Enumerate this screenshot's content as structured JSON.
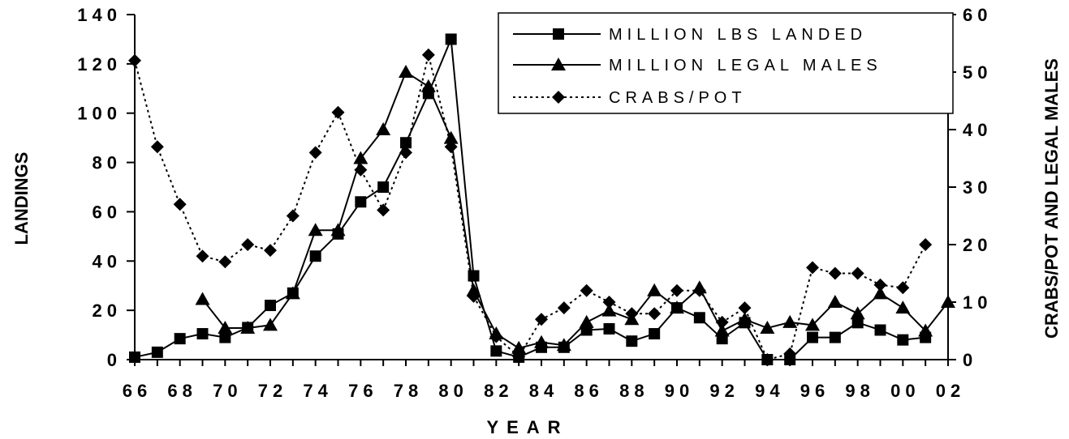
{
  "chart_data": {
    "type": "line",
    "xlabel": "YEAR",
    "ylabel_left": "LANDINGS",
    "ylabel_right": "CRABS/POT AND LEGAL MALES",
    "ylim_left": [
      0,
      140
    ],
    "ylim_right": [
      0,
      60
    ],
    "yticks_left": [
      "0",
      "20",
      "40",
      "60",
      "80",
      "100",
      "120",
      "140"
    ],
    "yticks_right": [
      "0",
      "10",
      "20",
      "30",
      "40",
      "50",
      "60"
    ],
    "xlim": [
      1966,
      2002
    ],
    "x_tick_labels": [
      "66",
      "68",
      "70",
      "72",
      "74",
      "76",
      "78",
      "80",
      "82",
      "84",
      "86",
      "88",
      "90",
      "92",
      "94",
      "96",
      "98",
      "00",
      "02"
    ],
    "grid": false,
    "legend_position": "top-right",
    "series": [
      {
        "name": "MILLION LBS LANDED",
        "axis": "left",
        "marker": "square",
        "line_style": "solid",
        "x": [
          1966,
          1967,
          1968,
          1969,
          1970,
          1971,
          1972,
          1973,
          1974,
          1975,
          1976,
          1977,
          1978,
          1979,
          1980,
          1981,
          1982,
          1983,
          1984,
          1985,
          1986,
          1987,
          1988,
          1989,
          1990,
          1991,
          1992,
          1993,
          1994,
          1995,
          1996,
          1997,
          1998,
          1999,
          2000,
          2001
        ],
        "values": [
          1,
          3,
          8.5,
          10.5,
          9,
          13,
          22,
          27,
          42,
          51,
          64,
          70,
          88,
          108,
          130,
          34,
          3.5,
          1,
          5,
          5,
          12,
          12.5,
          7.5,
          10.5,
          21,
          17,
          8.5,
          15,
          0,
          0,
          9,
          9,
          15,
          12,
          8,
          9
        ]
      },
      {
        "name": "MILLION LEGAL MALES",
        "axis": "right",
        "marker": "triangle",
        "line_style": "solid",
        "x": [
          1969,
          1970,
          1971,
          1972,
          1973,
          1974,
          1975,
          1976,
          1977,
          1978,
          1979,
          1980,
          1981,
          1982,
          1983,
          1984,
          1985,
          1986,
          1987,
          1988,
          1989,
          1990,
          1991,
          1992,
          1993,
          1994,
          1995,
          1996,
          1997,
          1998,
          1999,
          2000,
          2001,
          2002
        ],
        "values": [
          10.5,
          5.5,
          5.5,
          6,
          11.5,
          22.5,
          22.5,
          35,
          40,
          50,
          47.5,
          38.5,
          12,
          4.5,
          2,
          3,
          2.5,
          6.5,
          8.5,
          7,
          12,
          9,
          12.5,
          5,
          7,
          5.5,
          6.5,
          6,
          10,
          8,
          11.5,
          9,
          5,
          10
        ]
      },
      {
        "name": "CRABS/POT",
        "axis": "right",
        "marker": "diamond",
        "line_style": "dotted",
        "x": [
          1966,
          1967,
          1968,
          1969,
          1970,
          1971,
          1972,
          1973,
          1974,
          1975,
          1976,
          1977,
          1978,
          1979,
          1980,
          1981,
          1982,
          1983,
          1984,
          1985,
          1986,
          1987,
          1988,
          1989,
          1990,
          1991,
          1992,
          1993,
          1994,
          1995,
          1996,
          1997,
          1998,
          1999,
          2000,
          2001
        ],
        "values": [
          52,
          37,
          27,
          18,
          17,
          20,
          19,
          25,
          36,
          43,
          33,
          26,
          36,
          53,
          37,
          11,
          4,
          0.5,
          7,
          9,
          12,
          10,
          8,
          8,
          12,
          12,
          6.5,
          9,
          0,
          1,
          16,
          15,
          15,
          13,
          12.5,
          20
        ]
      }
    ]
  }
}
